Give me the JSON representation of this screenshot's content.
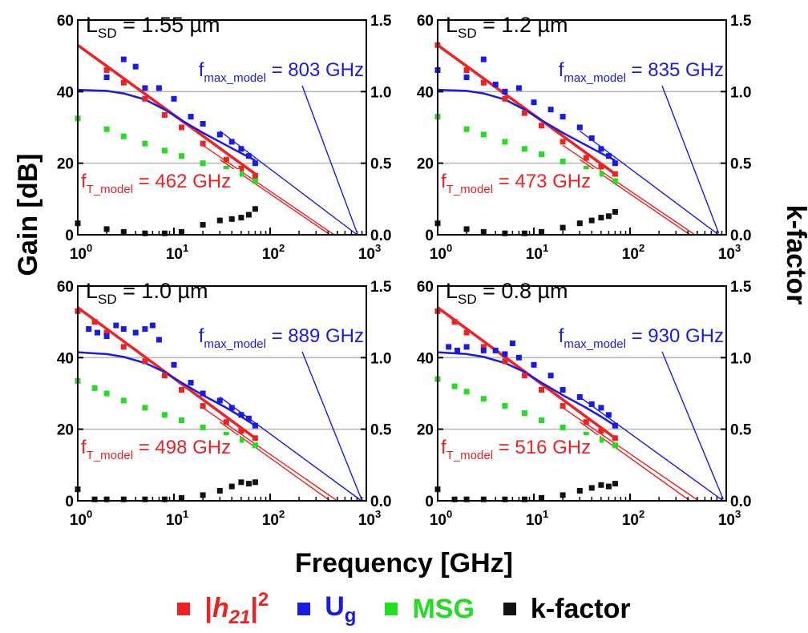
{
  "figure": {
    "ylabel_left": "Gain [dB]",
    "ylabel_right": "k-factor",
    "xlabel": "Frequency [GHz]"
  },
  "colors": {
    "h21": "#ee2222",
    "ug": "#1a1ae6",
    "msg": "#22dd22",
    "kfactor": "#111111",
    "grid": "#b5b5b5"
  },
  "legend": [
    {
      "key": "h21",
      "pre": "|",
      "main": "h",
      "sub": "21",
      "post": "|",
      "sup": "2"
    },
    {
      "key": "ug",
      "pre": "",
      "main": "U",
      "sub": "g",
      "post": "",
      "sup": ""
    },
    {
      "key": "msg",
      "pre": "",
      "main": "MSG",
      "sub": "",
      "post": "",
      "sup": ""
    },
    {
      "key": "kfactor",
      "pre": "",
      "main": "k-factor",
      "sub": "",
      "post": "",
      "sup": ""
    }
  ],
  "chart_data": [
    {
      "type": "scatter",
      "panel_title": {
        "prefix": "L",
        "sub": "SD",
        "value": " = 1.55 µm"
      },
      "xscale": "log",
      "xlim": [
        1,
        1000
      ],
      "ylim": [
        0,
        60
      ],
      "y2lim": [
        0,
        1.5
      ],
      "xticks": [
        "10^0",
        "10^1",
        "10^2",
        "10^3"
      ],
      "yticks": [
        "0",
        "20",
        "40",
        "60"
      ],
      "y2ticks": [
        "0.0",
        "0.5",
        "1.0",
        "1.5"
      ],
      "grid_y": [
        20,
        40
      ],
      "annotations": {
        "fmax": {
          "pre": "f",
          "sub": "max_model",
          "text": " = 803 GHz",
          "value_ghz": 803
        },
        "ft": {
          "pre": "f",
          "sub": "T_model",
          "text": " = 462 GHz",
          "value_ghz": 462
        }
      },
      "series": [
        {
          "name": "|h21|^2",
          "key": "h21",
          "x": [
            2,
            3,
            5,
            8,
            12,
            20,
            35,
            50,
            70
          ],
          "y": [
            46,
            42.5,
            38,
            33.5,
            30,
            25.5,
            21,
            18.5,
            16.5
          ]
        },
        {
          "name": "Ug",
          "key": "ug",
          "x": [
            2,
            3,
            4,
            5,
            7,
            10,
            15,
            20,
            30,
            40,
            50,
            60,
            70
          ],
          "y": [
            44,
            49,
            47,
            41,
            41,
            38,
            33,
            31,
            28,
            26,
            24,
            22,
            20
          ]
        },
        {
          "name": "MSG",
          "key": "msg",
          "x": [
            1,
            2,
            3,
            5,
            8,
            12,
            20,
            35,
            50,
            70
          ],
          "y": [
            32.5,
            29.5,
            27.5,
            25.5,
            23.5,
            22,
            20,
            18.5,
            17,
            15
          ]
        },
        {
          "name": "k-factor",
          "key": "kfactor",
          "x": [
            1,
            2,
            3,
            5,
            8,
            12,
            20,
            30,
            40,
            50,
            60,
            70
          ],
          "y2": [
            0.08,
            0.04,
            0.02,
            0.01,
            0.01,
            0.02,
            0.07,
            0.1,
            0.11,
            0.12,
            0.14,
            0.18
          ]
        }
      ],
      "fits": [
        {
          "key": "h21",
          "x": [
            1,
            70
          ],
          "y": [
            53,
            17
          ]
        },
        {
          "key": "h21",
          "x": [
            20,
            462
          ],
          "y": [
            25,
            0
          ]
        },
        {
          "key": "h21",
          "x": [
            30,
            420
          ],
          "y": [
            21,
            0
          ]
        },
        {
          "key": "ug",
          "x": [
            1,
            2,
            3,
            5,
            8,
            12,
            20,
            35,
            50,
            70
          ],
          "y": [
            40.5,
            40.2,
            39.5,
            37.8,
            35,
            32,
            28.5,
            25,
            22.8,
            20.8
          ]
        },
        {
          "key": "ug",
          "x": [
            30,
            803
          ],
          "y": [
            29,
            0
          ]
        }
      ]
    },
    {
      "type": "scatter",
      "panel_title": {
        "prefix": "L",
        "sub": "SD",
        "value": " = 1.2 µm"
      },
      "xscale": "log",
      "xlim": [
        1,
        1000
      ],
      "ylim": [
        0,
        60
      ],
      "y2lim": [
        0,
        1.5
      ],
      "xticks": [
        "10^0",
        "10^1",
        "10^2",
        "10^3"
      ],
      "yticks": [
        "0",
        "20",
        "40",
        "60"
      ],
      "y2ticks": [
        "0.0",
        "0.5",
        "1.0",
        "1.5"
      ],
      "grid_y": [
        20,
        40
      ],
      "annotations": {
        "fmax": {
          "pre": "f",
          "sub": "max_model",
          "text": " = 835 GHz",
          "value_ghz": 835
        },
        "ft": {
          "pre": "f",
          "sub": "T_model",
          "text": " = 473 GHz",
          "value_ghz": 473
        }
      },
      "series": [
        {
          "name": "|h21|^2",
          "key": "h21",
          "x": [
            1,
            2,
            3,
            5,
            8,
            12,
            20,
            35,
            50,
            70
          ],
          "y": [
            53,
            46,
            42.5,
            38,
            34,
            30.5,
            26,
            21.5,
            19,
            17
          ]
        },
        {
          "name": "Ug",
          "key": "ug",
          "x": [
            1,
            2,
            3,
            4,
            5,
            7,
            10,
            15,
            20,
            30,
            40,
            50,
            60,
            70
          ],
          "y": [
            46,
            44,
            49,
            42,
            40,
            41,
            37,
            35,
            33,
            30,
            27,
            24,
            22,
            20
          ]
        },
        {
          "name": "MSG",
          "key": "msg",
          "x": [
            1,
            2,
            3,
            5,
            8,
            12,
            20,
            35,
            50,
            70
          ],
          "y": [
            33,
            29.5,
            28,
            26,
            24,
            22.5,
            20.5,
            18.5,
            17,
            15
          ]
        },
        {
          "name": "k-factor",
          "key": "kfactor",
          "x": [
            1,
            2,
            3,
            5,
            8,
            12,
            20,
            30,
            40,
            50,
            60,
            70
          ],
          "y2": [
            0.08,
            0.04,
            0.02,
            0.01,
            0.01,
            0.02,
            0.05,
            0.08,
            0.1,
            0.12,
            0.13,
            0.16
          ]
        }
      ],
      "fits": [
        {
          "key": "h21",
          "x": [
            1,
            70
          ],
          "y": [
            53,
            17
          ]
        },
        {
          "key": "h21",
          "x": [
            20,
            473
          ],
          "y": [
            25,
            0
          ]
        },
        {
          "key": "h21",
          "x": [
            30,
            420
          ],
          "y": [
            21,
            0
          ]
        },
        {
          "key": "ug",
          "x": [
            1,
            2,
            3,
            5,
            8,
            12,
            20,
            35,
            50,
            70
          ],
          "y": [
            40.5,
            40.2,
            39.5,
            37.8,
            35,
            32,
            28.5,
            25,
            22.8,
            20.8
          ]
        },
        {
          "key": "ug",
          "x": [
            30,
            835
          ],
          "y": [
            29,
            0
          ]
        }
      ]
    },
    {
      "type": "scatter",
      "panel_title": {
        "prefix": "L",
        "sub": "SD",
        "value": " = 1.0 µm"
      },
      "xscale": "log",
      "xlim": [
        1,
        1000
      ],
      "ylim": [
        0,
        60
      ],
      "y2lim": [
        0,
        1.5
      ],
      "xticks": [
        "10^0",
        "10^1",
        "10^2",
        "10^3"
      ],
      "yticks": [
        "0",
        "20",
        "40",
        "60"
      ],
      "y2ticks": [
        "0.0",
        "0.5",
        "1.0",
        "1.5"
      ],
      "grid_y": [
        20,
        40
      ],
      "annotations": {
        "fmax": {
          "pre": "f",
          "sub": "max_model",
          "text": " = 889 GHz",
          "value_ghz": 889
        },
        "ft": {
          "pre": "f",
          "sub": "T_model",
          "text": " = 498 GHz",
          "value_ghz": 498
        }
      },
      "series": [
        {
          "name": "|h21|^2",
          "key": "h21",
          "x": [
            1,
            1.5,
            2,
            3,
            5,
            8,
            12,
            20,
            35,
            50,
            70
          ],
          "y": [
            53,
            50,
            47,
            43,
            39,
            35,
            31,
            26.5,
            22,
            19.5,
            17.5
          ]
        },
        {
          "name": "Ug",
          "key": "ug",
          "x": [
            1.3,
            1.6,
            2,
            2.5,
            3,
            4,
            5,
            6,
            7,
            10,
            15,
            20,
            30,
            40,
            50,
            60,
            70
          ],
          "y": [
            48,
            47,
            46,
            49,
            48,
            47,
            48,
            49,
            45,
            38,
            33,
            30,
            28,
            26,
            24,
            23,
            21
          ]
        },
        {
          "name": "MSG",
          "key": "msg",
          "x": [
            1,
            1.5,
            2,
            3,
            5,
            8,
            12,
            20,
            35,
            50,
            70
          ],
          "y": [
            33.5,
            31.5,
            30,
            28,
            26,
            24,
            22.5,
            20.5,
            18.5,
            17,
            15.5
          ]
        },
        {
          "name": "k-factor",
          "key": "kfactor",
          "x": [
            1,
            1.5,
            2,
            3,
            5,
            8,
            12,
            20,
            30,
            40,
            50,
            60,
            70
          ],
          "y2": [
            0.08,
            0.01,
            0.01,
            0.01,
            0.01,
            0.01,
            0.02,
            0.04,
            0.07,
            0.1,
            0.13,
            0.12,
            0.13
          ]
        }
      ],
      "fits": [
        {
          "key": "h21",
          "x": [
            1,
            70
          ],
          "y": [
            54,
            17.5
          ]
        },
        {
          "key": "h21",
          "x": [
            20,
            498
          ],
          "y": [
            26,
            0
          ]
        },
        {
          "key": "h21",
          "x": [
            30,
            420
          ],
          "y": [
            22,
            0
          ]
        },
        {
          "key": "ug",
          "x": [
            1,
            2,
            3,
            5,
            8,
            12,
            20,
            35,
            50,
            70
          ],
          "y": [
            41.5,
            41,
            40.2,
            38.5,
            36,
            33,
            29.5,
            26,
            23.5,
            21
          ]
        },
        {
          "key": "ug",
          "x": [
            30,
            889
          ],
          "y": [
            29,
            0
          ]
        }
      ]
    },
    {
      "type": "scatter",
      "panel_title": {
        "prefix": "L",
        "sub": "SD",
        "value": " = 0.8 µm"
      },
      "xscale": "log",
      "xlim": [
        1,
        1000
      ],
      "ylim": [
        0,
        60
      ],
      "y2lim": [
        0,
        1.5
      ],
      "xticks": [
        "10^0",
        "10^1",
        "10^2",
        "10^3"
      ],
      "yticks": [
        "0",
        "20",
        "40",
        "60"
      ],
      "y2ticks": [
        "0.0",
        "0.5",
        "1.0",
        "1.5"
      ],
      "grid_y": [
        20,
        40
      ],
      "annotations": {
        "fmax": {
          "pre": "f",
          "sub": "max_model",
          "text": " = 930 GHz",
          "value_ghz": 930
        },
        "ft": {
          "pre": "f",
          "sub": "T_model",
          "text": " = 516 GHz",
          "value_ghz": 516
        }
      },
      "series": [
        {
          "name": "|h21|^2",
          "key": "h21",
          "x": [
            1,
            1.5,
            2,
            3,
            5,
            8,
            12,
            20,
            35,
            50,
            70
          ],
          "y": [
            53,
            50,
            47,
            43,
            39,
            35,
            31,
            26.5,
            22,
            19.5,
            17.5
          ]
        },
        {
          "name": "Ug",
          "key": "ug",
          "x": [
            1.3,
            1.6,
            2,
            3,
            4,
            5,
            6,
            7,
            10,
            15,
            20,
            30,
            40,
            50,
            60,
            70
          ],
          "y": [
            43,
            42,
            43,
            42,
            42,
            41,
            44,
            40,
            38,
            35,
            31,
            29,
            27,
            26,
            24,
            21
          ]
        },
        {
          "name": "MSG",
          "key": "msg",
          "x": [
            1,
            1.5,
            2,
            3,
            5,
            8,
            12,
            20,
            35,
            50,
            70
          ],
          "y": [
            34,
            32,
            30.5,
            28.5,
            26.5,
            24.5,
            22.5,
            20.5,
            18.5,
            17,
            15.5
          ]
        },
        {
          "name": "k-factor",
          "key": "kfactor",
          "x": [
            1,
            1.5,
            2,
            3,
            5,
            8,
            12,
            20,
            30,
            40,
            50,
            60,
            70
          ],
          "y2": [
            0.08,
            0.01,
            0.01,
            0.01,
            0.01,
            0.01,
            0.02,
            0.04,
            0.07,
            0.09,
            0.11,
            0.1,
            0.12
          ]
        }
      ],
      "fits": [
        {
          "key": "h21",
          "x": [
            1,
            70
          ],
          "y": [
            54,
            17.5
          ]
        },
        {
          "key": "h21",
          "x": [
            20,
            516
          ],
          "y": [
            26,
            0
          ]
        },
        {
          "key": "h21",
          "x": [
            30,
            420
          ],
          "y": [
            22,
            0
          ]
        },
        {
          "key": "ug",
          "x": [
            1,
            2,
            3,
            5,
            8,
            12,
            20,
            35,
            50,
            70
          ],
          "y": [
            41.5,
            41,
            40.2,
            38.5,
            36,
            33,
            29.5,
            26,
            23.5,
            21
          ]
        },
        {
          "key": "ug",
          "x": [
            30,
            930
          ],
          "y": [
            29,
            0
          ]
        }
      ]
    }
  ]
}
